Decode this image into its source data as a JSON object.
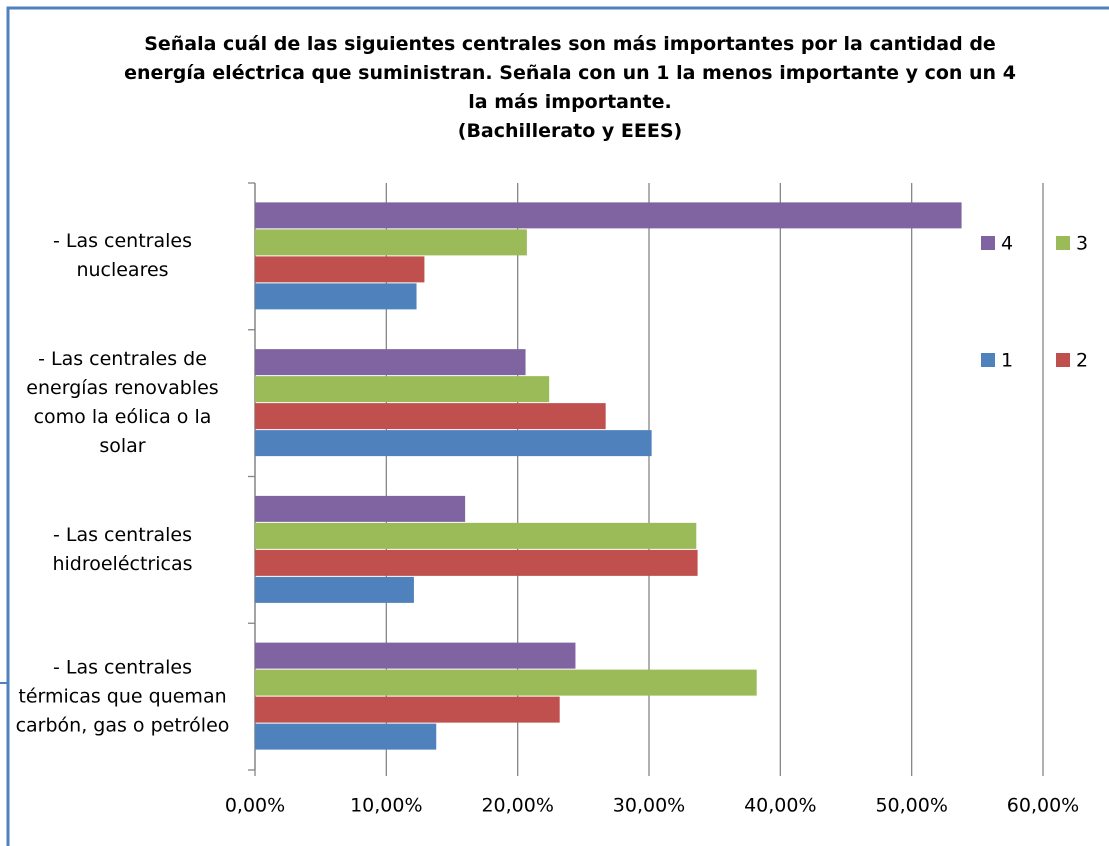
{
  "chart_data": {
    "type": "bar",
    "orientation": "horizontal",
    "title": "Señala cuál de las siguientes centrales son más importantes por la cantidad de energía eléctrica que suministran. Señala con un 1 la menos importante y con un 4 la más importante.",
    "subtitle": "(Bachillerato y EEES)",
    "categories": [
      "- Las centrales nucleares",
      "- Las centrales de energías renovables como la eólica o la solar",
      "- Las centrales hidroeléctricas",
      "- Las centrales térmicas que queman carbón, gas o petróleo"
    ],
    "series": [
      {
        "name": "1",
        "color": "#4f81bd",
        "values": [
          12.3,
          30.2,
          12.1,
          13.8
        ]
      },
      {
        "name": "2",
        "color": "#c0504d",
        "values": [
          12.9,
          26.7,
          33.7,
          23.2
        ]
      },
      {
        "name": "3",
        "color": "#9bbb59",
        "values": [
          20.7,
          22.4,
          33.6,
          38.2
        ]
      },
      {
        "name": "4",
        "color": "#8064a2",
        "values": [
          53.8,
          20.6,
          16.0,
          24.4
        ]
      }
    ],
    "xlim": [
      0,
      60
    ],
    "xticks": [
      {
        "value": 0,
        "label": "0,00%"
      },
      {
        "value": 10,
        "label": "10,00%"
      },
      {
        "value": 20,
        "label": "20,00%"
      },
      {
        "value": 30,
        "label": "30,00%"
      },
      {
        "value": 40,
        "label": "40,00%"
      },
      {
        "value": 50,
        "label": "50,00%"
      },
      {
        "value": 60,
        "label": "60,00%"
      }
    ],
    "grid": true,
    "legend": "right"
  }
}
